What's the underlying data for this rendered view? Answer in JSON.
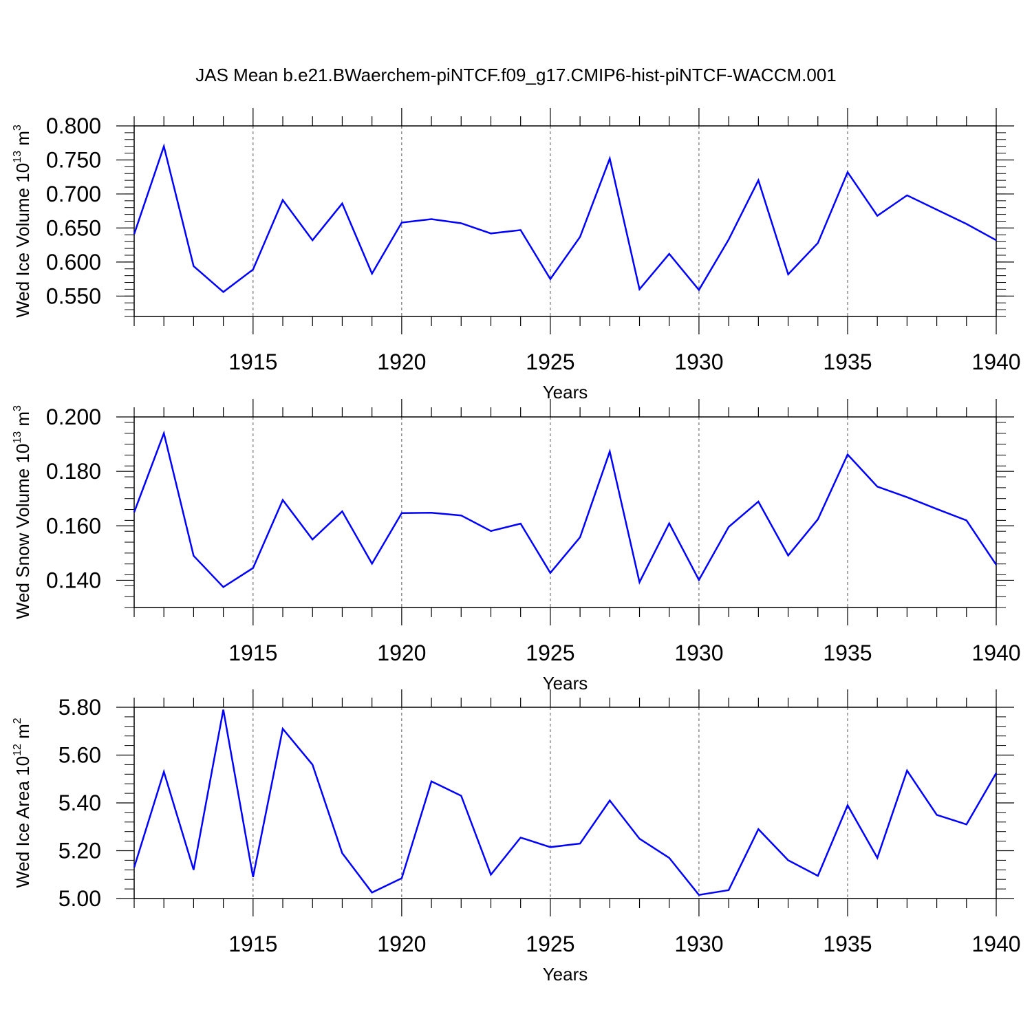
{
  "title": "JAS Mean b.e21.BWaerchem-piNTCF.f09_g17.CMIP6-hist-piNTCF-WACCM.001",
  "colors": {
    "line": "#0000ff",
    "axis": "#000000",
    "grid": "#555555"
  },
  "chart_data": [
    {
      "type": "line",
      "name": "ice-volume",
      "ylabel_text": "Wed Ice Volume 10",
      "ylabel_exp": "13",
      "ylabel_unit": " m",
      "ylabel_unit_exp": "3",
      "xlabel": "Years",
      "xlim": [
        1911,
        1940
      ],
      "ylim": [
        0.52,
        0.8
      ],
      "x_ticks": [
        1915,
        1920,
        1925,
        1930,
        1935,
        1940
      ],
      "y_ticks": [
        0.55,
        0.6,
        0.65,
        0.7,
        0.75,
        0.8
      ],
      "y_tick_labels": [
        "0.550",
        "0.600",
        "0.650",
        "0.700",
        "0.750",
        "0.800"
      ],
      "y_minor_step": 0.01,
      "x": [
        1911,
        1912,
        1913,
        1914,
        1915,
        1916,
        1917,
        1918,
        1919,
        1920,
        1921,
        1922,
        1923,
        1924,
        1925,
        1926,
        1927,
        1928,
        1929,
        1930,
        1931,
        1932,
        1933,
        1934,
        1935,
        1936,
        1937,
        1938,
        1939,
        1940
      ],
      "values": [
        0.641,
        0.77,
        0.594,
        0.556,
        0.589,
        0.691,
        0.632,
        0.686,
        0.583,
        0.658,
        0.663,
        0.657,
        0.642,
        0.647,
        0.575,
        0.637,
        0.752,
        0.56,
        0.612,
        0.559,
        0.633,
        0.72,
        0.582,
        0.628,
        0.732,
        0.668,
        0.698,
        0.677,
        0.656,
        0.632
      ]
    },
    {
      "type": "line",
      "name": "snow-volume",
      "ylabel_text": "Wed Snow Volume 10",
      "ylabel_exp": "13",
      "ylabel_unit": " m",
      "ylabel_unit_exp": "3",
      "xlabel": "Years",
      "xlim": [
        1911,
        1940
      ],
      "ylim": [
        0.13,
        0.2
      ],
      "x_ticks": [
        1915,
        1920,
        1925,
        1930,
        1935,
        1940
      ],
      "y_ticks": [
        0.14,
        0.16,
        0.18,
        0.2
      ],
      "y_tick_labels": [
        "0.140",
        "0.160",
        "0.180",
        "0.200"
      ],
      "y_minor_step": 0.004,
      "x": [
        1911,
        1912,
        1913,
        1914,
        1915,
        1916,
        1917,
        1918,
        1919,
        1920,
        1921,
        1922,
        1923,
        1924,
        1925,
        1926,
        1927,
        1928,
        1929,
        1930,
        1931,
        1932,
        1933,
        1934,
        1935,
        1936,
        1937,
        1938,
        1939,
        1940
      ],
      "values": [
        0.165,
        0.194,
        0.149,
        0.1375,
        0.1445,
        0.1695,
        0.155,
        0.1653,
        0.1461,
        0.1647,
        0.1648,
        0.1638,
        0.1581,
        0.1608,
        0.1427,
        0.1558,
        0.1873,
        0.1393,
        0.1609,
        0.1401,
        0.1596,
        0.1689,
        0.1491,
        0.1624,
        0.1862,
        0.1744,
        0.1705,
        0.1662,
        0.162,
        0.1457
      ]
    },
    {
      "type": "line",
      "name": "ice-area",
      "ylabel_text": "Wed Ice Area 10",
      "ylabel_exp": "12",
      "ylabel_unit": " m",
      "ylabel_unit_exp": "2",
      "xlabel": "Years",
      "xlim": [
        1911,
        1940
      ],
      "ylim": [
        5.0,
        5.8
      ],
      "x_ticks": [
        1915,
        1920,
        1925,
        1930,
        1935,
        1940
      ],
      "y_ticks": [
        5.0,
        5.2,
        5.4,
        5.6,
        5.8
      ],
      "y_tick_labels": [
        "5.00",
        "5.20",
        "5.40",
        "5.60",
        "5.80"
      ],
      "y_minor_step": 0.04,
      "x": [
        1911,
        1912,
        1913,
        1914,
        1915,
        1916,
        1917,
        1918,
        1919,
        1920,
        1921,
        1922,
        1923,
        1924,
        1925,
        1926,
        1927,
        1928,
        1929,
        1930,
        1931,
        1932,
        1933,
        1934,
        1935,
        1936,
        1937,
        1938,
        1939,
        1940
      ],
      "values": [
        5.13,
        5.53,
        5.12,
        5.79,
        5.09,
        5.71,
        5.56,
        5.19,
        5.025,
        5.085,
        5.49,
        5.43,
        5.1,
        5.255,
        5.215,
        5.23,
        5.41,
        5.25,
        5.17,
        5.015,
        5.035,
        5.29,
        5.16,
        5.095,
        5.39,
        5.17,
        5.535,
        5.35,
        5.31,
        5.525
      ]
    }
  ]
}
